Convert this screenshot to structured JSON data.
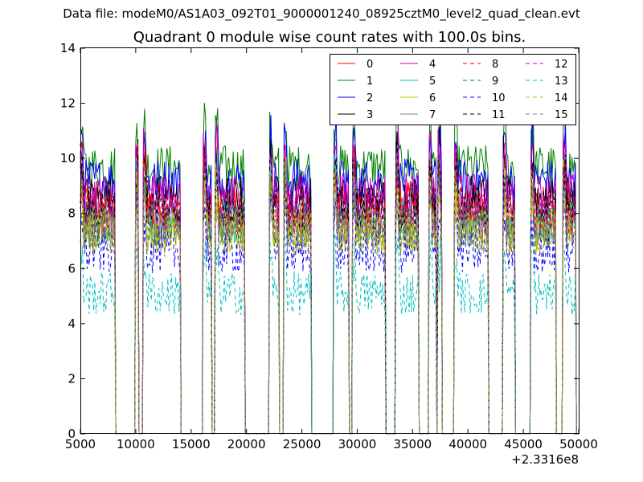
{
  "suptitle": "Data file: modeM0/AS1A03_092T01_9000001240_08925cztM0_level2_quad_clean.evt",
  "chart_data": {
    "type": "line",
    "title": "Quadrant 0 module wise count rates with 100.0s bins.",
    "xlabel": "",
    "ylabel": "",
    "x_offset_label": "+2.3316e8",
    "xlim": [
      5000,
      50000
    ],
    "ylim": [
      0,
      14
    ],
    "xticks": [
      5000,
      10000,
      15000,
      20000,
      25000,
      30000,
      35000,
      40000,
      45000,
      50000
    ],
    "yticks": [
      0,
      2,
      4,
      6,
      8,
      10,
      12,
      14
    ],
    "grid": false,
    "legend_position": "top-right",
    "legend_columns": 4,
    "good_time_segments": [
      [
        5000,
        8100
      ],
      [
        10000,
        10200
      ],
      [
        10700,
        14000
      ],
      [
        16100,
        16800
      ],
      [
        17200,
        19800
      ],
      [
        22100,
        22900
      ],
      [
        23400,
        25800
      ],
      [
        27900,
        29200
      ],
      [
        29600,
        32500
      ],
      [
        33500,
        35500
      ],
      [
        36500,
        37100
      ],
      [
        37300,
        37600
      ],
      [
        38800,
        41800
      ],
      [
        43200,
        44200
      ],
      [
        45700,
        47900
      ],
      [
        48600,
        49700
      ]
    ],
    "series": [
      {
        "name": "0",
        "color": "#ff0000",
        "style": "solid",
        "level": 8.4
      },
      {
        "name": "1",
        "color": "#008000",
        "style": "solid",
        "level": 9.7
      },
      {
        "name": "2",
        "color": "#0000ff",
        "style": "solid",
        "level": 9.2
      },
      {
        "name": "3",
        "color": "#000000",
        "style": "solid",
        "level": 8.6
      },
      {
        "name": "4",
        "color": "#bf00bf",
        "style": "solid",
        "level": 8.7
      },
      {
        "name": "5",
        "color": "#00bfbf",
        "style": "solid",
        "level": 7.7
      },
      {
        "name": "6",
        "color": "#bfbf00",
        "style": "solid",
        "level": 7.4
      },
      {
        "name": "7",
        "color": "#808080",
        "style": "solid",
        "level": 7.6
      },
      {
        "name": "8",
        "color": "#ff0000",
        "style": "dashed",
        "level": 8.0
      },
      {
        "name": "9",
        "color": "#008000",
        "style": "dashed",
        "level": 7.5
      },
      {
        "name": "10",
        "color": "#0000ff",
        "style": "dashed",
        "level": 6.6
      },
      {
        "name": "11",
        "color": "#000000",
        "style": "dashed",
        "level": 8.2
      },
      {
        "name": "12",
        "color": "#bf00bf",
        "style": "dashed",
        "level": 7.9
      },
      {
        "name": "13",
        "color": "#00bfbf",
        "style": "dashed",
        "level": 5.1
      },
      {
        "name": "14",
        "color": "#bfbf00",
        "style": "dashed",
        "level": 7.3
      },
      {
        "name": "15",
        "color": "#808080",
        "style": "dashed",
        "level": 7.2
      }
    ]
  }
}
